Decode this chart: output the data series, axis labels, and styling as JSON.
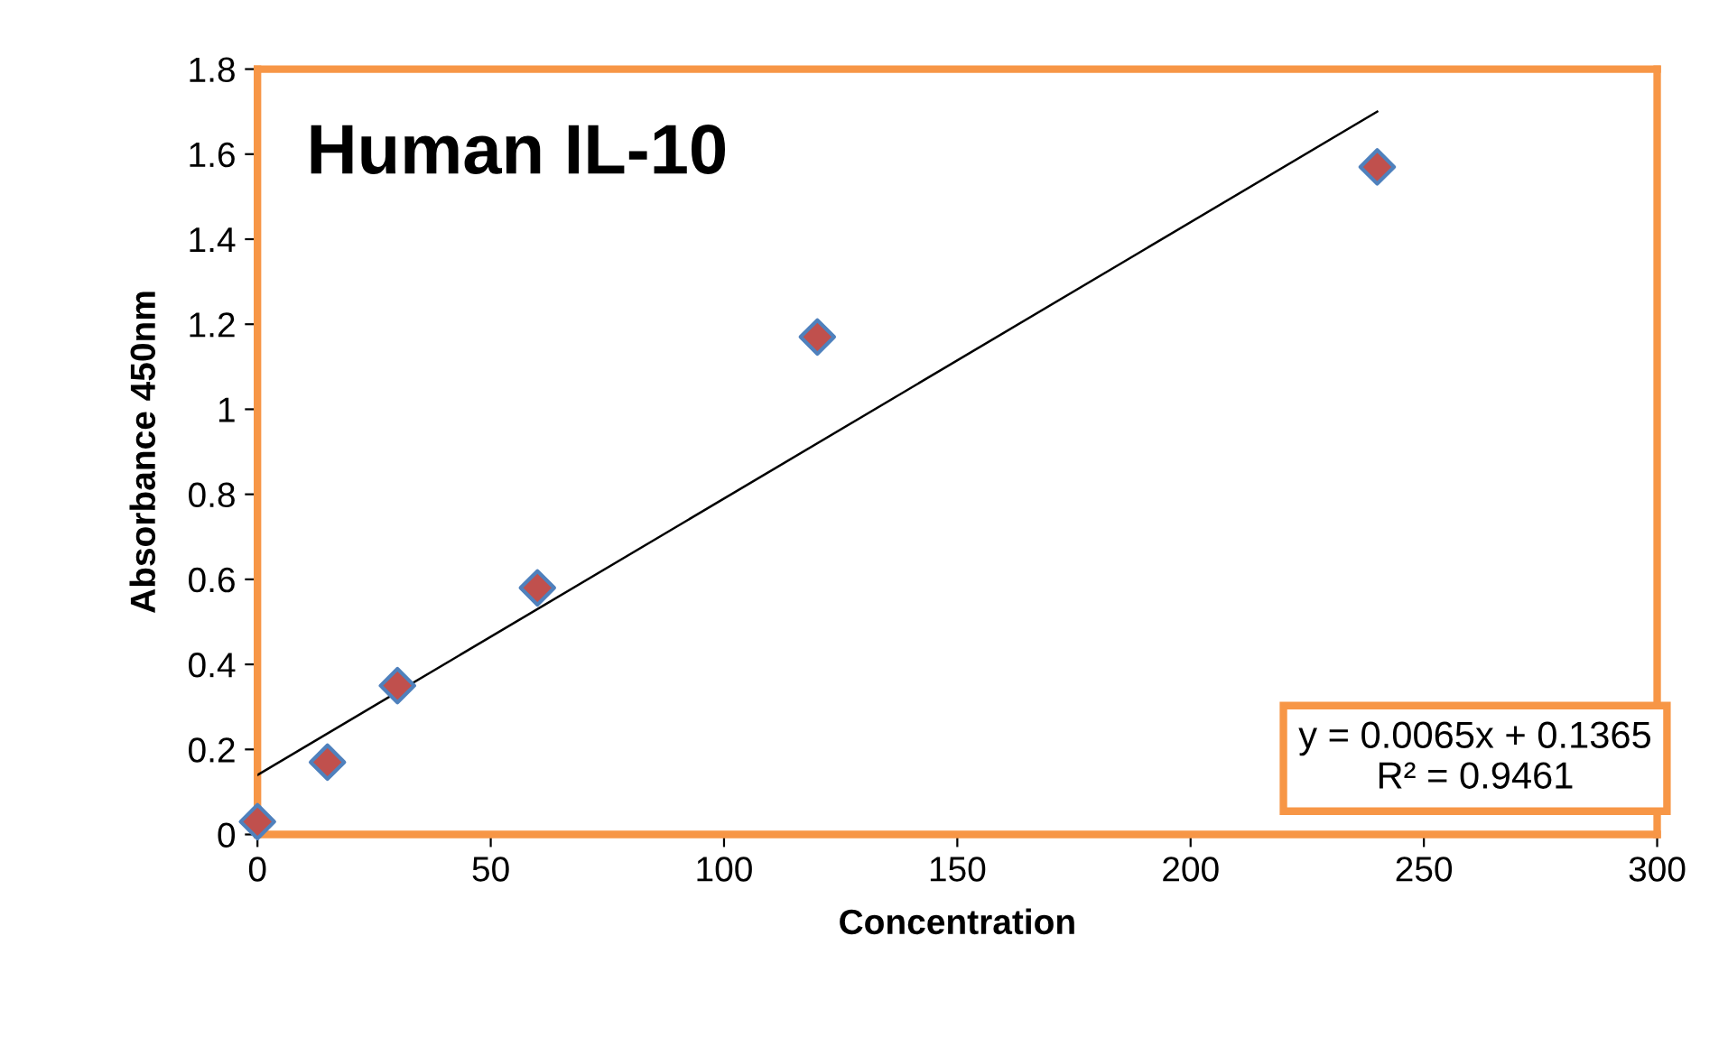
{
  "chart_data": {
    "type": "scatter",
    "title": "Human IL-10",
    "xlabel": "Concentration",
    "ylabel": "Absorbance 450nm",
    "x": [
      0,
      15,
      30,
      60,
      120,
      240
    ],
    "series": [
      {
        "color": "#c0504d",
        "values": [
          0.03,
          0.17,
          0.35,
          0.58,
          1.17,
          1.57
        ],
        "marker": "diamond"
      },
      {
        "type": "line",
        "color": "#000000",
        "x": [
          0,
          240
        ],
        "values": [
          0.14,
          1.7
        ],
        "marker": "none",
        "line_style": "solid"
      }
    ],
    "annotations": [
      "y = 0.0065x + 0.1365\nR² = 0.9461"
    ],
    "xlim": [
      0,
      300
    ],
    "xticks": [
      0,
      50,
      100,
      150,
      200,
      250,
      300
    ],
    "ylim": [
      0,
      1.8
    ],
    "yticks": [
      0,
      0.2,
      0.4,
      0.6,
      0.8,
      1,
      1.2,
      1.4,
      1.6,
      1.8
    ],
    "grid": false,
    "legend": false
  }
}
